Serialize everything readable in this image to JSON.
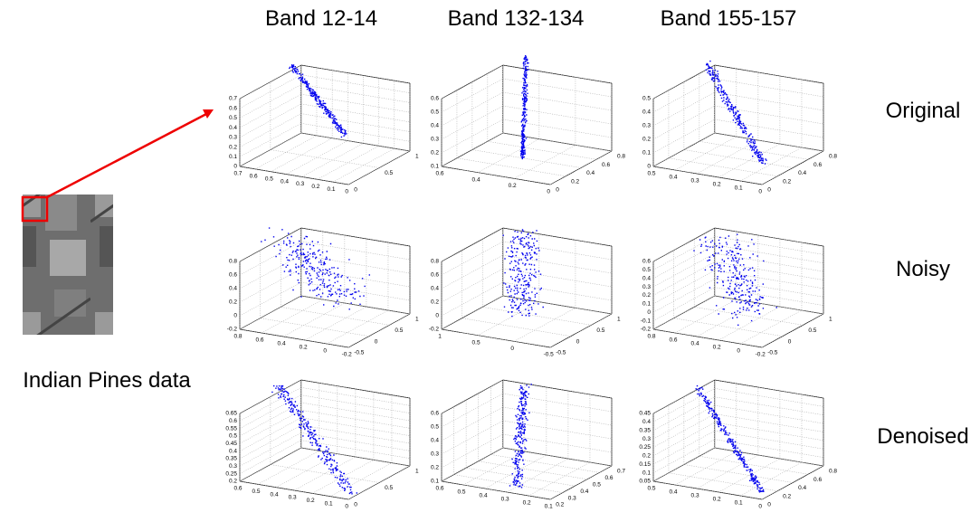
{
  "columns": [
    "Band 12-14",
    "Band 132-134",
    "Band 155-157"
  ],
  "rows": [
    "Original",
    "Noisy",
    "Denoised"
  ],
  "image_caption": "Indian Pines data",
  "panels": [
    [
      {
        "z": [
          "0",
          "0.1",
          "0.2",
          "0.3",
          "0.4",
          "0.5",
          "0.6",
          "0.7"
        ],
        "left": [
          "0.7",
          "0.6",
          "0.5",
          "0.4",
          "0.3",
          "0.2",
          "0.1",
          "0"
        ],
        "right": [
          "0",
          "0.5",
          "1"
        ]
      },
      {
        "z": [
          "0.1",
          "0.2",
          "0.3",
          "0.4",
          "0.5",
          "0.6"
        ],
        "left": [
          "0.6",
          "0.4",
          "0.2",
          "0"
        ],
        "right": [
          "0",
          "0.2",
          "0.4",
          "0.6",
          "0.8"
        ]
      },
      {
        "z": [
          "0",
          "0.1",
          "0.2",
          "0.3",
          "0.4",
          "0.5"
        ],
        "left": [
          "0.5",
          "0.4",
          "0.3",
          "0.2",
          "0.1",
          "0"
        ],
        "right": [
          "0",
          "0.2",
          "0.4",
          "0.6",
          "0.8"
        ]
      }
    ],
    [
      {
        "z": [
          "-0.2",
          "0",
          "0.2",
          "0.4",
          "0.6",
          "0.8"
        ],
        "left": [
          "0.8",
          "0.6",
          "0.4",
          "0.2",
          "0",
          "-0.2"
        ],
        "right": [
          "-0.5",
          "0",
          "0.5",
          "1"
        ]
      },
      {
        "z": [
          "-0.2",
          "0",
          "0.2",
          "0.4",
          "0.6",
          "0.8"
        ],
        "left": [
          "1",
          "0.5",
          "0",
          "-0.5"
        ],
        "right": [
          "-0.5",
          "0",
          "0.5",
          "1"
        ]
      },
      {
        "z": [
          "-0.2",
          "-0.1",
          "0",
          "0.1",
          "0.2",
          "0.3",
          "0.4",
          "0.5",
          "0.6"
        ],
        "left": [
          "0.8",
          "0.6",
          "0.4",
          "0.2",
          "0",
          "-0.2"
        ],
        "right": [
          "-0.5",
          "0",
          "0.5",
          "1"
        ]
      }
    ],
    [
      {
        "z": [
          "0.2",
          "0.25",
          "0.3",
          "0.35",
          "0.4",
          "0.45",
          "0.5",
          "0.55",
          "0.6",
          "0.65"
        ],
        "left": [
          "0.6",
          "0.5",
          "0.4",
          "0.3",
          "0.2",
          "0.1",
          "0"
        ],
        "right": [
          "0",
          "0.5",
          "1"
        ]
      },
      {
        "z": [
          "0.1",
          "0.2",
          "0.3",
          "0.4",
          "0.5",
          "0.6"
        ],
        "left": [
          "0.6",
          "0.5",
          "0.4",
          "0.3",
          "0.2",
          "0.1"
        ],
        "right": [
          "0.2",
          "0.3",
          "0.4",
          "0.5",
          "0.6",
          "0.7"
        ]
      },
      {
        "z": [
          "0.05",
          "0.1",
          "0.15",
          "0.2",
          "0.25",
          "0.3",
          "0.35",
          "0.4",
          "0.45"
        ],
        "left": [
          "0.5",
          "0.4",
          "0.3",
          "0.2",
          "0.1",
          "0"
        ],
        "right": [
          "0",
          "0.2",
          "0.4",
          "0.6",
          "0.8"
        ]
      }
    ]
  ]
}
